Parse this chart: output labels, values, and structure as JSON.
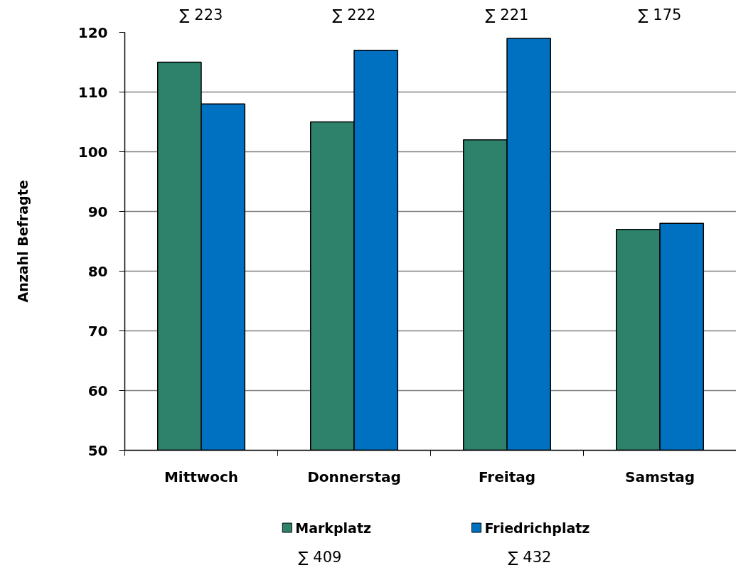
{
  "chart_data": {
    "type": "bar",
    "ylabel": "Anzahl Befragte",
    "categories": [
      "Mittwoch",
      "Donnerstag",
      "Freitag",
      "Samstag"
    ],
    "series": [
      {
        "name": "Markplatz",
        "color": "#2e826c",
        "values": [
          115,
          105,
          102,
          87
        ]
      },
      {
        "name": "Friedrichplatz",
        "color": "#0070c0",
        "values": [
          108,
          117,
          119,
          88
        ]
      }
    ],
    "ylim": [
      50,
      120
    ],
    "yticks": [
      50,
      60,
      70,
      80,
      90,
      100,
      110,
      120
    ],
    "grid": "y",
    "legend": "bottom",
    "annotations": [
      "∑ 223",
      "∑ 222",
      "∑ 221",
      "∑ 175",
      "∑ 409",
      "∑ 432"
    ]
  }
}
